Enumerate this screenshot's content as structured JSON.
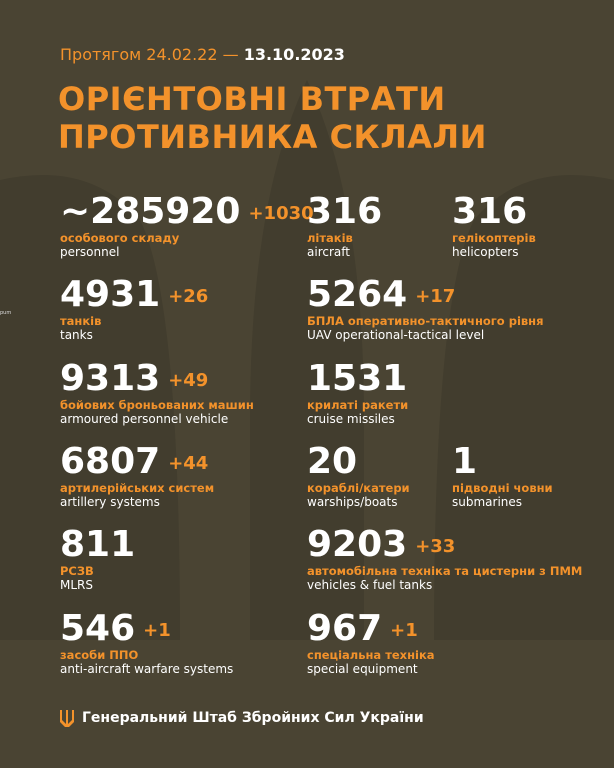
{
  "header": {
    "period_prefix": "Протягом 24.02.22 —",
    "period_end": "13.10.2023",
    "title_line1": "ОРІЄНТОВНІ ВТРАТИ",
    "title_line2": "ПРОТИВНИКА СКЛАЛИ"
  },
  "edge_fragment": "рum",
  "items": [
    {
      "value": "~285920",
      "delta": "+1030",
      "label_uk": "особового складу",
      "label_en": "personnel"
    },
    {
      "value": "316",
      "label_uk": "літаків",
      "label_en": "aircraft"
    },
    {
      "value": "316",
      "label_uk": "гелікоптерів",
      "label_en": "helicopters"
    },
    {
      "value": "4931",
      "delta": "+26",
      "label_uk": "танків",
      "label_en": "tanks"
    },
    {
      "value": "5264",
      "delta": "+17",
      "label_uk": "БПЛА оперативно-тактичного рівня",
      "label_en": "UAV operational-tactical level"
    },
    {
      "value": "9313",
      "delta": "+49",
      "label_uk": "бойових броньованих машин",
      "label_en": "armoured personnel vehicle"
    },
    {
      "value": "1531",
      "label_uk": "крилаті ракети",
      "label_en": "cruise missiles"
    },
    {
      "value": "6807",
      "delta": "+44",
      "label_uk": "артилерійських систем",
      "label_en": "artillery systems"
    },
    {
      "value": "20",
      "label_uk": "кораблі/катери",
      "label_en": "warships/boats"
    },
    {
      "value": "1",
      "label_uk": "підводні човни",
      "label_en": "submarines"
    },
    {
      "value": "811",
      "label_uk": "РСЗВ",
      "label_en": "MLRS"
    },
    {
      "value": "9203",
      "delta": "+33",
      "label_uk": "автомобільна техніка та цистерни з ПММ",
      "label_en": "vehicles & fuel tanks"
    },
    {
      "value": "546",
      "delta": "+1",
      "label_uk": "засоби ППО",
      "label_en": "anti-aircraft warfare systems"
    },
    {
      "value": "967",
      "delta": "+1",
      "label_uk": "спеціальна техніка",
      "label_en": "special equipment"
    }
  ],
  "footer": "Генеральний Штаб Збройних Сил України"
}
